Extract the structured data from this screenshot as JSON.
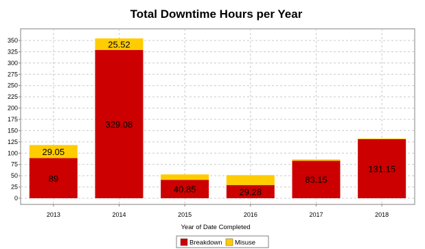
{
  "chart_data": {
    "type": "bar",
    "stacked": true,
    "title": "Total Downtime Hours per Year",
    "xlabel": "Year of Date Completed",
    "ylabel": "",
    "categories": [
      "2013",
      "2014",
      "2015",
      "2016",
      "2017",
      "2018"
    ],
    "series": [
      {
        "name": "Breakdown",
        "color": "#cc0000",
        "values": [
          89,
          329.08,
          40.85,
          29.28,
          83.15,
          131.15
        ]
      },
      {
        "name": "Misuse",
        "color": "#ffcc00",
        "values": [
          29.05,
          25.52,
          12,
          22,
          3,
          1.5
        ]
      }
    ],
    "data_labels": [
      [
        "89",
        "329.08",
        "40.85",
        "29.28",
        "83.15",
        "131.15"
      ],
      [
        "29.05",
        "25.52",
        "",
        "",
        "",
        ""
      ]
    ],
    "ylim": [
      0,
      360
    ],
    "yticks": [
      0,
      25,
      50,
      75,
      100,
      125,
      150,
      175,
      200,
      225,
      250,
      275,
      300,
      325,
      350
    ],
    "grid": true,
    "legend_position": "bottom-center"
  }
}
